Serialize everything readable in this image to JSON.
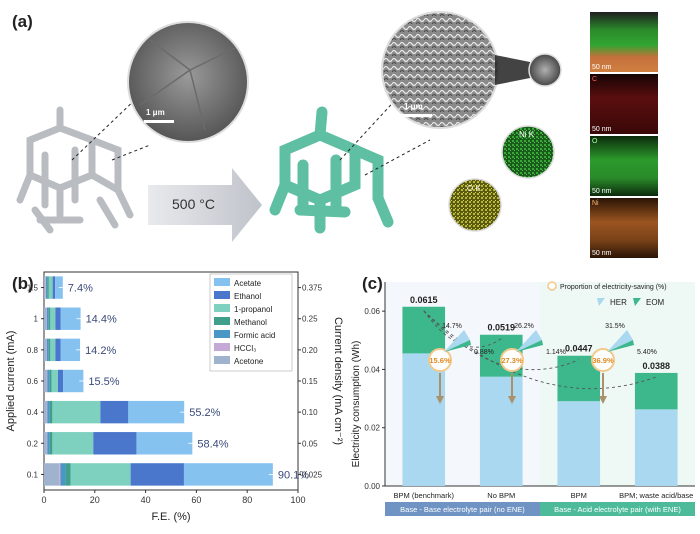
{
  "panel_a": {
    "label": "(a)",
    "arrow_text": "500 °C",
    "sem_left_scale": "1 μm",
    "sem_right_scale": "1 μm",
    "map_ni": "Ni K",
    "map_o": "O K",
    "strip_scale": "50 nm",
    "strip_c": "C",
    "strip_o": "O",
    "strip_ni": "Ni",
    "colors": {
      "lattice_grey": "#c9ccd0",
      "lattice_green": "#5fbfa3",
      "arrow": "#c8ccd3"
    }
  },
  "panel_b": {
    "label": "(b)",
    "ylabel_left": "Applied current (mA)",
    "ylabel_right": "Current density (mA cm⁻²)",
    "xlabel": "F.E. (%)"
  },
  "panel_c": {
    "label": "(c)",
    "ylabel": "Electricity consumption (Wh)",
    "legend_title": "Proportion of electricity-saving (%)",
    "legend_her": "HER",
    "legend_eom": "EOM",
    "group_left": "Base - Base electrolyte pair (no ENE)",
    "group_right": "Base - Acid electrolyte pair (with ENE)"
  },
  "chart_data": [
    {
      "type": "bar",
      "orientation": "horizontal-stacked",
      "categories": [
        "1.5",
        "1",
        "0.8",
        "0.6",
        "0.4",
        "0.2",
        "0.1"
      ],
      "right_axis_ticks": [
        "0.375",
        "0.25",
        "0.20",
        "0.15",
        "0.10",
        "0.05",
        "0.025"
      ],
      "xlim": [
        0,
        100
      ],
      "xticks": [
        0,
        20,
        40,
        60,
        80,
        100
      ],
      "totals_labels": [
        "7.4%",
        "14.4%",
        "14.2%",
        "15.5%",
        "55.2%",
        "58.4%",
        "90.1%"
      ],
      "series": [
        {
          "name": "Acetone",
          "color": "#9fb3cf",
          "values": [
            0.5,
            0.8,
            0.8,
            1.0,
            1.0,
            1.0,
            6.0
          ]
        },
        {
          "name": "HCCl₃",
          "color": "#c4a8d6",
          "values": [
            0.3,
            0.3,
            0.3,
            0.3,
            0.3,
            0.3,
            0.5
          ]
        },
        {
          "name": "Formic acid",
          "color": "#4a96c4",
          "values": [
            0.5,
            0.8,
            0.8,
            1.0,
            1.0,
            1.0,
            2.0
          ]
        },
        {
          "name": "Methanol",
          "color": "#3f9f8a",
          "values": [
            0.6,
            0.6,
            0.6,
            0.7,
            1.0,
            1.0,
            2.0
          ]
        },
        {
          "name": "1-propanol",
          "color": "#7fd1bf",
          "values": [
            1.5,
            2.0,
            2.0,
            2.5,
            18.9,
            16.1,
            23.6
          ]
        },
        {
          "name": "Ethanol",
          "color": "#4a77cc",
          "values": [
            1.0,
            2.0,
            2.0,
            2.0,
            11.0,
            17.0,
            21.0
          ]
        },
        {
          "name": "Acetate",
          "color": "#86c2f0",
          "values": [
            3.0,
            7.9,
            7.7,
            8.0,
            22.0,
            22.0,
            35.0
          ]
        }
      ],
      "xlabel": "F.E. (%)",
      "ylabel": "Applied current (mA)"
    },
    {
      "type": "bar",
      "orientation": "vertical-stacked",
      "categories": [
        "BPM (benchmark)",
        "No BPM",
        "BPM",
        "BPM; waste acid/base"
      ],
      "ylim": [
        0,
        0.07
      ],
      "yticks": [
        "0.00",
        "0.02",
        "0.04",
        "0.06"
      ],
      "totals": [
        0.0615,
        0.0519,
        0.0447,
        0.0388
      ],
      "series": [
        {
          "name": "HER",
          "color": "#a9d8f0",
          "values": [
            0.0455,
            0.0375,
            0.0291,
            0.0263
          ]
        },
        {
          "name": "EOM",
          "color": "#3cb88c",
          "values": [
            0.016,
            0.0144,
            0.0156,
            0.0125
          ]
        }
      ],
      "pies": [
        {
          "saving": "15.6%",
          "her": "14.7%",
          "eom": "0.88%"
        },
        {
          "saving": "27.3%",
          "her": "26.2%",
          "eom": "1.14%"
        },
        {
          "saving": "36.9%",
          "her": "31.5%",
          "eom": "5.40%"
        }
      ],
      "ylabel": "Electricity consumption (Wh)"
    }
  ]
}
